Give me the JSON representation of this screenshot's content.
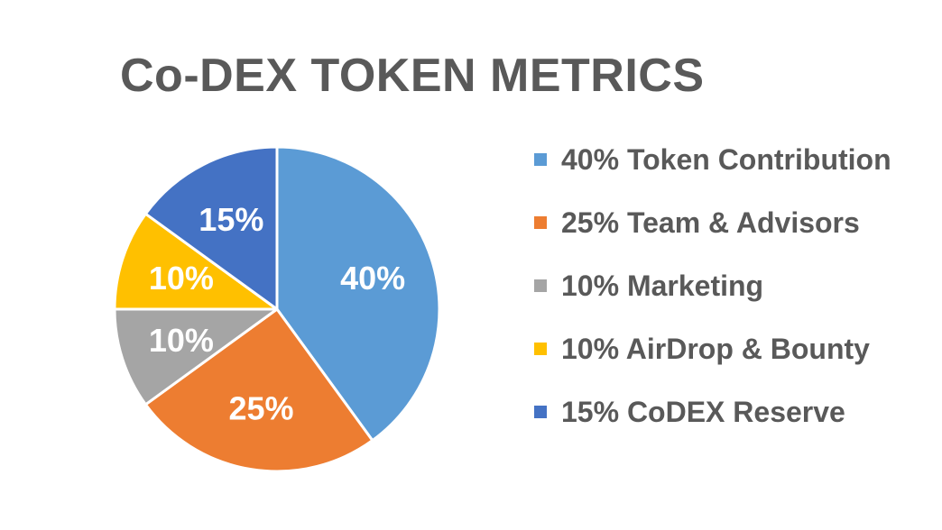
{
  "chart_data": {
    "type": "pie",
    "title": "Co-DEX TOKEN METRICS",
    "slices": [
      {
        "name": "Token Contribution",
        "value": 40,
        "data_label": "40%",
        "legend_label": "40% Token Contribution",
        "color": "#5B9BD5"
      },
      {
        "name": "Team & Advisors",
        "value": 25,
        "data_label": "25%",
        "legend_label": "25% Team & Advisors",
        "color": "#ED7D31"
      },
      {
        "name": "Marketing",
        "value": 10,
        "data_label": "10%",
        "legend_label": "10% Marketing",
        "color": "#A5A5A5"
      },
      {
        "name": "AirDrop & Bounty",
        "value": 10,
        "data_label": "10%",
        "legend_label": "10% AirDrop & Bounty",
        "color": "#FFC000"
      },
      {
        "name": "CoDEX Reserve",
        "value": 15,
        "data_label": "15%",
        "legend_label": "15% CoDEX Reserve",
        "color": "#4472C4"
      }
    ],
    "start_angle": "12 o'clock",
    "direction": "clockwise",
    "legend_position": "right"
  }
}
